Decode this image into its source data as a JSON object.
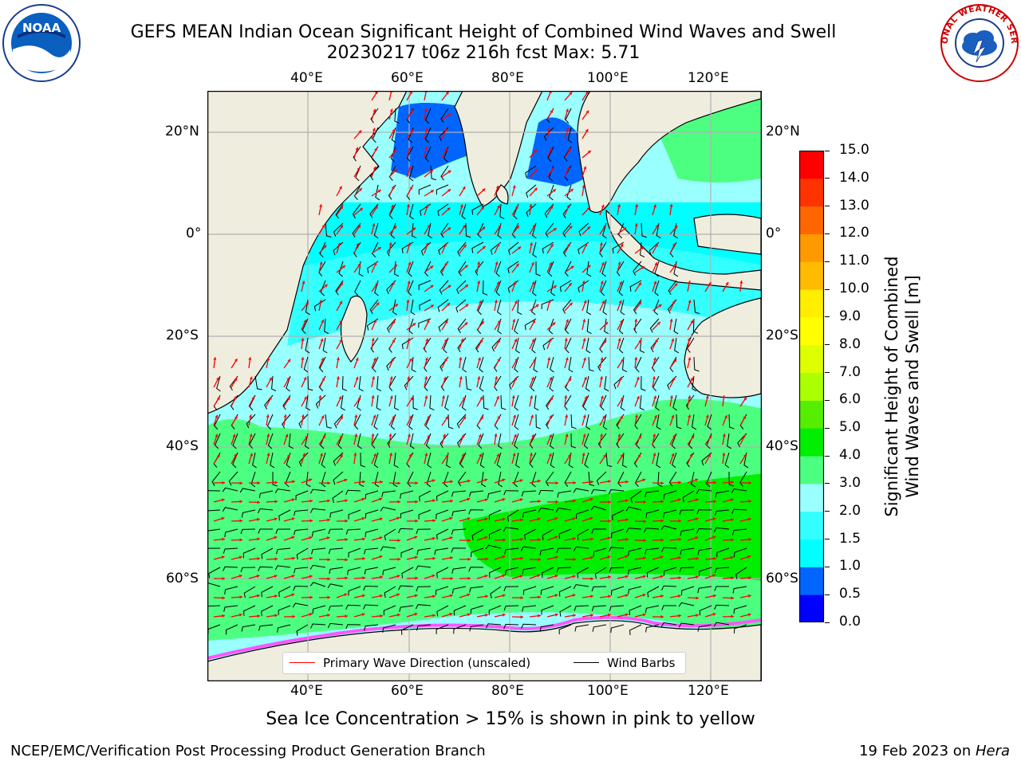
{
  "title": {
    "line1": "GEFS MEAN Indian Ocean Significant Height of Combined Wind Waves and Swell",
    "line2": "20230217 t06z 216h fcst   Max: 5.71"
  },
  "logos": {
    "left": {
      "icon": "noaa-logo",
      "text": "NOAA"
    },
    "right": {
      "icon": "national-weather-service-logo",
      "text": "NATIONAL WEATHER SERVICE"
    }
  },
  "map": {
    "lon_labels": [
      "40°E",
      "60°E",
      "80°E",
      "100°E",
      "120°E"
    ],
    "lat_labels": [
      "20°N",
      "0°",
      "20°S",
      "40°S",
      "60°S"
    ],
    "land_color": "#efedde",
    "grid_color": "#b0b0b0"
  },
  "legend": {
    "wave": {
      "label": "Primary Wave Direction (unscaled)",
      "color": "#ff0000"
    },
    "wind": {
      "label": "Wind Barbs",
      "color": "#000000"
    }
  },
  "colorbar": {
    "label_line1": "Significant Height of Combined",
    "label_line2": "Wind Waves and Swell [m]",
    "ticks": [
      "0.0",
      "0.5",
      "1.0",
      "1.5",
      "2.0",
      "3.0",
      "4.0",
      "5.0",
      "6.0",
      "7.0",
      "8.0",
      "9.0",
      "10.0",
      "11.0",
      "12.0",
      "13.0",
      "14.0",
      "15.0"
    ],
    "colors": [
      "#0000ff",
      "#0066ff",
      "#00ffff",
      "#33ffff",
      "#99ffff",
      "#4dff80",
      "#00ee00",
      "#55ee00",
      "#aaff00",
      "#ddff00",
      "#ffff00",
      "#ffee00",
      "#ffbb00",
      "#ff9900",
      "#ff6600",
      "#ff3300",
      "#ff0000"
    ]
  },
  "ice_note": "Sea Ice Concentration > 15% is shown in pink to yellow",
  "footer": {
    "left": "NCEP/EMC/Verification Post Processing Product Generation Branch",
    "right_prefix": "19 Feb 2023 on ",
    "right_host": "Hera"
  }
}
